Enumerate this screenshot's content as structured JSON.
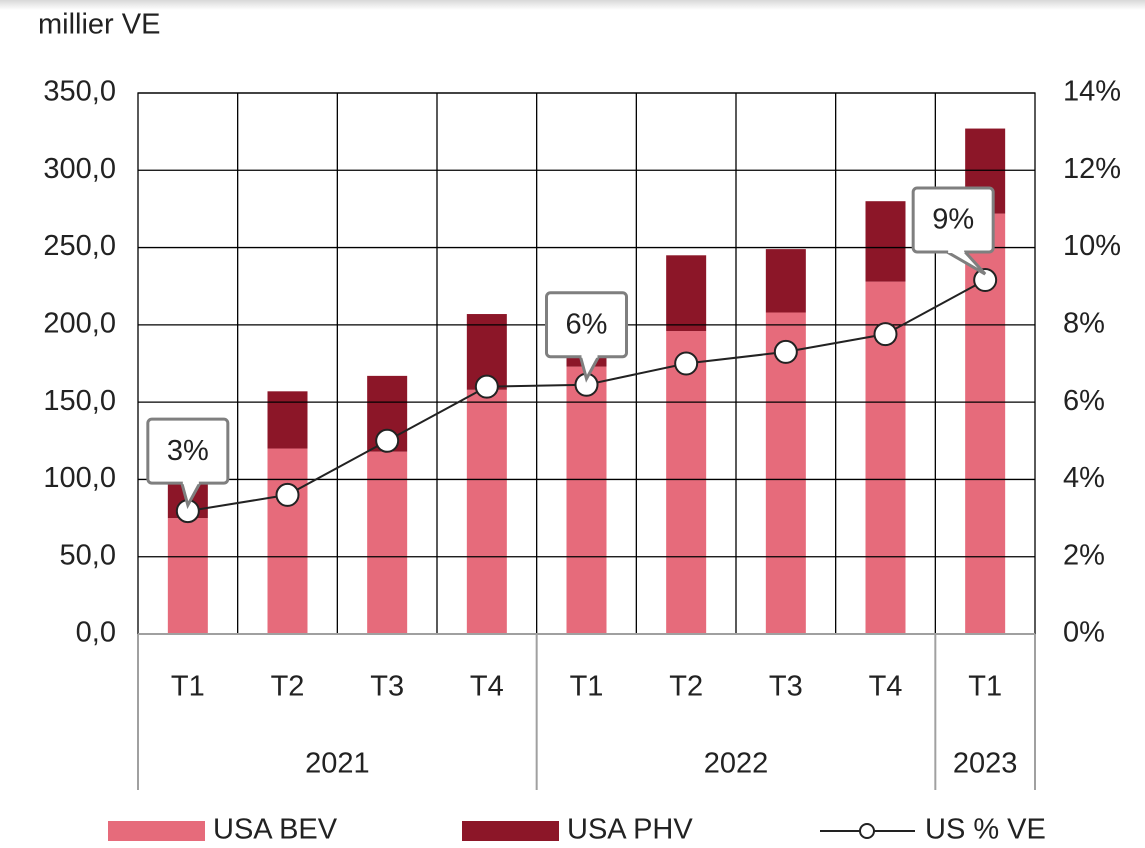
{
  "chart_data": {
    "type": "bar",
    "stacked": true,
    "y_label": "millier VE",
    "categories": [
      "T1",
      "T2",
      "T3",
      "T4",
      "T1",
      "T2",
      "T3",
      "T4",
      "T1"
    ],
    "groups": [
      {
        "name": "2021",
        "count": 4
      },
      {
        "name": "2022",
        "count": 4
      },
      {
        "name": "2023",
        "count": 1
      }
    ],
    "series": [
      {
        "name": "USA BEV",
        "type": "bar",
        "color": "#e66b7b",
        "values": [
          75,
          120,
          118,
          158,
          173,
          196,
          208,
          228,
          272
        ]
      },
      {
        "name": "USA PHV",
        "type": "bar",
        "color": "#8c1628",
        "values": [
          25,
          37,
          49,
          49,
          6,
          49,
          41,
          52,
          55
        ]
      },
      {
        "name": "US % VE",
        "type": "line",
        "axis": "y2",
        "color": "#222222",
        "values": [
          3.18,
          3.6,
          5.0,
          6.4,
          6.45,
          7.0,
          7.3,
          7.76,
          9.16
        ],
        "value_labels": [
          "3%",
          null,
          null,
          null,
          "6%",
          null,
          null,
          null,
          "9%"
        ]
      }
    ],
    "ylim": [
      0,
      350
    ],
    "yticks": [
      {
        "value": 0,
        "label": "0,0"
      },
      {
        "value": 50,
        "label": "50,0"
      },
      {
        "value": 100,
        "label": "100,0"
      },
      {
        "value": 150,
        "label": "150,0"
      },
      {
        "value": 200,
        "label": "200,0"
      },
      {
        "value": 250,
        "label": "250,0"
      },
      {
        "value": 300,
        "label": "300,0"
      },
      {
        "value": 350,
        "label": "350,0"
      }
    ],
    "y2lim": [
      0,
      14
    ],
    "y2ticks": [
      {
        "value": 0,
        "label": "0%"
      },
      {
        "value": 2,
        "label": "2%"
      },
      {
        "value": 4,
        "label": "4%"
      },
      {
        "value": 6,
        "label": "6%"
      },
      {
        "value": 8,
        "label": "8%"
      },
      {
        "value": 10,
        "label": "10%"
      },
      {
        "value": 12,
        "label": "12%"
      },
      {
        "value": 14,
        "label": "14%"
      }
    ],
    "grid": true,
    "legend": "bottom"
  }
}
